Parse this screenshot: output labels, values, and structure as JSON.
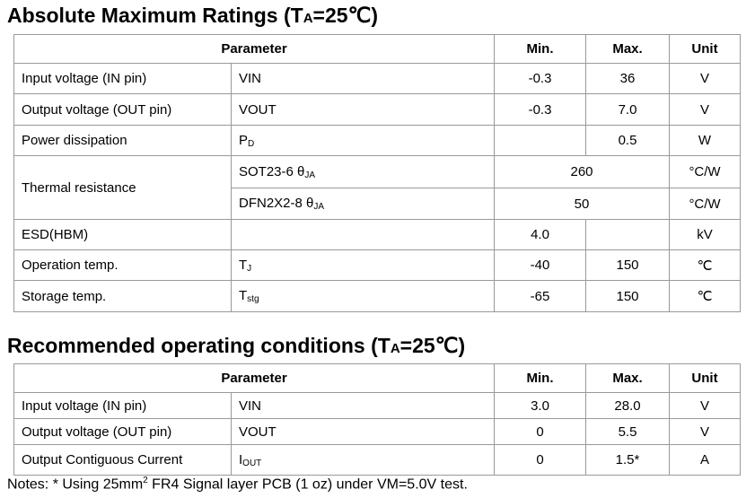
{
  "tables": [
    {
      "title": {
        "main": "Absolute Maximum Ratings (T",
        "sub": "A",
        "tail": "=25℃)"
      },
      "header": [
        "Parameter",
        "Min.",
        "Max.",
        "Unit"
      ],
      "rows": [
        {
          "parameter": "Input voltage (IN pin)",
          "symbol": {
            "main": "VIN"
          },
          "min": "-0.3",
          "max": "36",
          "unit": "V"
        },
        {
          "parameter": "Output voltage (OUT pin)",
          "symbol": {
            "main": "VOUT"
          },
          "min": "-0.3",
          "max": "7.0",
          "unit": "V"
        },
        {
          "parameter": "Power dissipation",
          "symbol": {
            "main": "P",
            "sub": "D"
          },
          "max": "0.5",
          "unit": "W"
        },
        {
          "parameter": "Thermal resistance",
          "items": [
            {
              "symbol": {
                "main": "SOT23-6 θ",
                "sub": "JA"
              },
              "value": "260",
              "unit": "°C/W"
            },
            {
              "symbol": {
                "main": "DFN2X2-8 θ",
                "sub": "JA"
              },
              "value": "50",
              "unit": "°C/W"
            }
          ]
        },
        {
          "parameter": "ESD(HBM)",
          "min": "4.0",
          "unit": "kV"
        },
        {
          "parameter": "Operation temp.",
          "symbol": {
            "main": "T",
            "sub": "J"
          },
          "min": "-40",
          "max": "150",
          "unit": "℃"
        },
        {
          "parameter": "Storage temp.",
          "symbol": {
            "main": "T",
            "sub": "stg"
          },
          "min": "-65",
          "max": "150",
          "unit": "℃"
        }
      ]
    },
    {
      "title": {
        "main": "Recommended operating conditions (T",
        "sub": "A",
        "tail": "=25℃)"
      },
      "header": [
        "Parameter",
        "Min.",
        "Max.",
        "Unit"
      ],
      "rows": [
        {
          "parameter": "Input voltage (IN pin)",
          "symbol": {
            "main": "VIN"
          },
          "min": "3.0",
          "max": "28.0",
          "unit": "V"
        },
        {
          "parameter": "Output voltage (OUT pin)",
          "symbol": {
            "main": "VOUT"
          },
          "min": "0",
          "max": "5.5",
          "unit": "V"
        },
        {
          "parameter": "Output Contiguous Current",
          "symbol": {
            "main": "I",
            "sub": "OUT"
          },
          "min": "0",
          "max": "1.5*",
          "unit": "A"
        }
      ]
    }
  ],
  "note": {
    "main": "Notes: * Using 25mm",
    "sup": "2",
    "tail": " FR4 Signal layer PCB (1 oz) under VM=5.0V test."
  }
}
